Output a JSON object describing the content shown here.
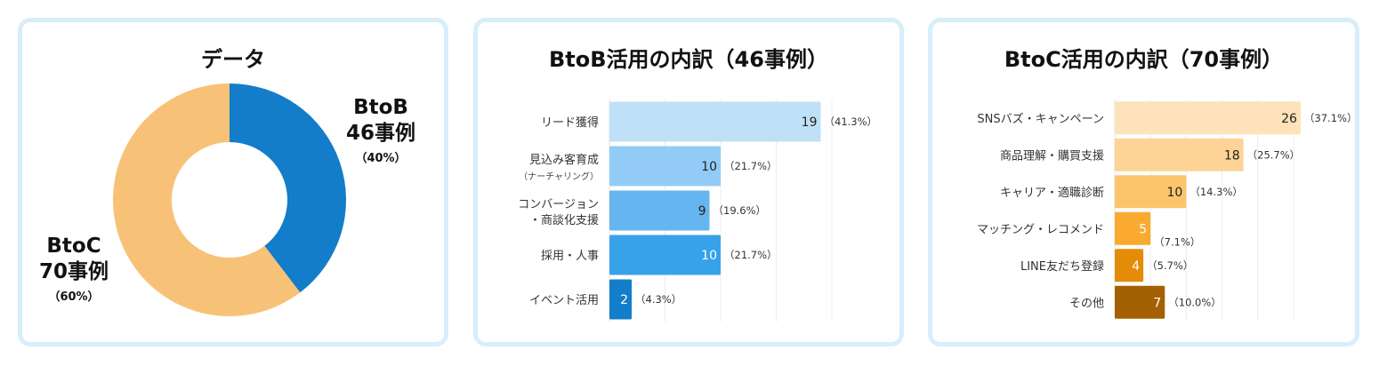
{
  "panels": {
    "overview": {
      "title": "データ",
      "btob": {
        "label": "BtoB",
        "count": "46事例",
        "pct": "（40%）"
      },
      "btoc": {
        "label": "BtoC",
        "count": "70事例",
        "pct": "（60%）"
      }
    },
    "btob": {
      "title": "BtoB活用の内訳（46事例）"
    },
    "btoc": {
      "title": "BtoC活用の内訳（70事例）"
    }
  },
  "colors": {
    "donut_btob": "#137dc9",
    "donut_btoc": "#f7c277",
    "btob_bars": [
      "#bfe1f8",
      "#92ccf6",
      "#65b6f0",
      "#37a2ea",
      "#137dc9"
    ],
    "btoc_bars": [
      "#fee2b9",
      "#fdd495",
      "#fcc56c",
      "#f9aa2f",
      "#e48c07",
      "#a46103"
    ]
  },
  "chart_data": [
    {
      "type": "pie",
      "title": "データ",
      "categories": [
        "BtoB",
        "BtoC"
      ],
      "values": [
        46,
        70
      ],
      "percent_labels": [
        "（40%）",
        "（60%）"
      ]
    },
    {
      "type": "bar",
      "orientation": "horizontal",
      "title": "BtoB活用の内訳（46事例）",
      "categories": [
        [
          "リード獲得"
        ],
        [
          "見込み客育成",
          "（ナーチャリング）"
        ],
        [
          "コンバージョン",
          "・商談化支援"
        ],
        [
          "採用・人事"
        ],
        [
          "イベント活用"
        ]
      ],
      "values": [
        19,
        10,
        9,
        10,
        2
      ],
      "percent_labels": [
        "（41.3%）",
        "（21.7%）",
        "（19.6%）",
        "（21.7%）",
        "（4.3%）"
      ],
      "xlim": [
        0,
        20
      ],
      "grid": true
    },
    {
      "type": "bar",
      "orientation": "horizontal",
      "title": "BtoC活用の内訳（70事例）",
      "categories": [
        [
          "SNSバズ・キャンペーン"
        ],
        [
          "商品理解・購買支援"
        ],
        [
          "キャリア・適職診断"
        ],
        [
          "マッチング・レコメンド"
        ],
        [
          "LINE友だち登録"
        ],
        [
          "その他"
        ]
      ],
      "values": [
        26,
        18,
        10,
        5,
        4,
        7
      ],
      "percent_labels": [
        "（37.1%）",
        "（25.7%）",
        "（14.3%）",
        "（7.1%）",
        "（5.7%）",
        "（10.0%）"
      ],
      "xlim": [
        0,
        28
      ],
      "grid": true
    }
  ]
}
